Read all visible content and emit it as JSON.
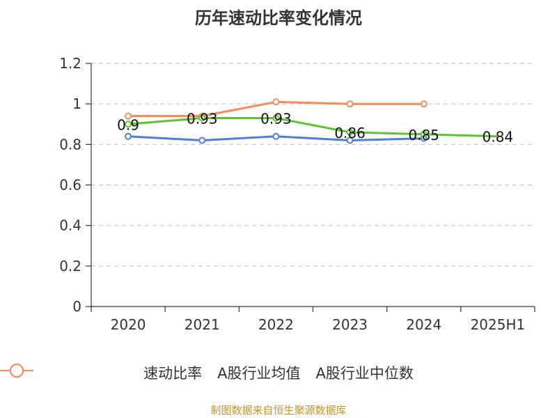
{
  "chart_data": {
    "type": "line",
    "title": "历年速动比率变化情况",
    "categories": [
      "2020",
      "2021",
      "2022",
      "2023",
      "2024",
      "2025H1"
    ],
    "ylim": [
      0,
      1.2
    ],
    "yticks": [
      "0",
      "0.2",
      "0.4",
      "0.6",
      "0.8",
      "1",
      "1.2"
    ],
    "grid": true,
    "legend_position": "bottom",
    "series": [
      {
        "name": "速动比率",
        "color": "#5ec331",
        "values": [
          0.9,
          0.93,
          0.93,
          0.86,
          0.85,
          0.84
        ],
        "labels": [
          "0.9",
          "0.93",
          "0.93",
          "0.86",
          "0.85",
          "0.84"
        ]
      },
      {
        "name": "A股行业均值",
        "color": "#4d7fd8",
        "values": [
          0.84,
          0.82,
          0.84,
          0.82,
          0.83,
          null
        ]
      },
      {
        "name": "A股行业中位数",
        "color": "#f48c5b",
        "values": [
          0.94,
          0.94,
          1.01,
          1.0,
          1.0,
          null
        ]
      }
    ]
  },
  "footer": {
    "source": "制图数据来自恒生聚源数据库"
  }
}
